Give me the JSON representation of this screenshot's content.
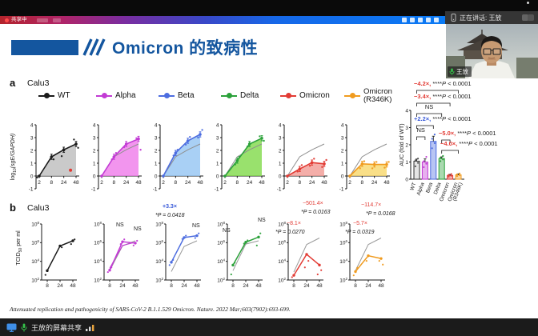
{
  "meeting": {
    "share_bar": {
      "status_label": "共享中",
      "speaking_label": "正在讲话: 王放"
    },
    "webcam": {
      "name": "王放"
    },
    "taskbar": {
      "share_label": "王放的屏幕共享"
    }
  },
  "slide": {
    "title": "Omicron 的致病性",
    "panel_a": {
      "label": "a",
      "cell_line": "Calu3"
    },
    "panel_b": {
      "label": "b",
      "cell_line": "Calu3"
    },
    "legend": [
      {
        "label": "WT",
        "color": "#1a1a1a"
      },
      {
        "label": "Alpha",
        "color": "#c23bd4"
      },
      {
        "label": "Beta",
        "color": "#4d6de0"
      },
      {
        "label": "Delta",
        "color": "#2ba13a"
      },
      {
        "label": "Omicron",
        "color": "#e23b34"
      },
      {
        "label": "Omicron",
        "label2": "(R346K)",
        "color": "#f09b1f"
      }
    ],
    "citation": "Attenuated replication and pathogenicity of SARS-CoV-2 B.1.1.529 Omicron. Nature. 2022 Mar;603(7902):693-699."
  },
  "chart_data": {
    "panel_a": {
      "type": "area",
      "x": [
        2,
        8,
        24,
        48
      ],
      "xticks": [
        "2",
        "8",
        "24",
        "48"
      ],
      "ylabel": "log10(sgE/GAPDH)",
      "ylim": [
        -1,
        4
      ],
      "yticks": [
        4,
        3,
        2,
        1,
        0,
        -1
      ],
      "wt_reference": [
        0,
        1.5,
        2.05,
        2.5
      ],
      "series": [
        {
          "name": "WT",
          "color": "#1a1a1a",
          "fill": "#bdbdbd",
          "values": [
            0,
            1.5,
            2.05,
            2.5
          ],
          "dots": [
            [
              0,
              -0.12
            ],
            [
              1,
              1.3
            ],
            [
              2,
              1.55
            ],
            [
              3,
              2.2
            ],
            [
              3,
              2.85
            ]
          ],
          "outlier": [
            2.55,
            0.45
          ]
        },
        {
          "name": "Alpha",
          "color": "#c23bd4",
          "fill": "#ef7bea",
          "values": [
            0,
            1.5,
            2.5,
            2.9
          ],
          "ref": true,
          "dots": [
            [
              1,
              1.3
            ],
            [
              1,
              1.8
            ],
            [
              2,
              2.25
            ],
            [
              3,
              2.05
            ],
            [
              3,
              2.95
            ]
          ]
        },
        {
          "name": "Beta",
          "color": "#4d6de0",
          "fill": "#93c4f2",
          "values": [
            0,
            1.8,
            2.75,
            3.25
          ],
          "ref": true,
          "dots": [
            [
              1,
              1.6
            ],
            [
              1,
              2.05
            ],
            [
              2,
              2.45
            ],
            [
              2,
              3.05
            ],
            [
              3,
              3.0
            ],
            [
              3,
              3.6
            ]
          ]
        },
        {
          "name": "Delta",
          "color": "#2ba13a",
          "fill": "#7fd948",
          "values": [
            0,
            1.2,
            2.5,
            2.95
          ],
          "ref": true,
          "dots": [
            [
              1,
              0.9
            ],
            [
              1,
              1.5
            ],
            [
              2,
              2.3
            ],
            [
              3,
              2.75
            ],
            [
              3,
              3.1
            ]
          ]
        },
        {
          "name": "Omicron",
          "color": "#e23b34",
          "fill": "#f19a93",
          "values": [
            0,
            0.55,
            1.05,
            0.95
          ],
          "ref": true,
          "dots": [
            [
              1,
              0.35
            ],
            [
              1,
              0.85
            ],
            [
              2,
              0.8
            ],
            [
              2,
              1.35
            ],
            [
              3,
              0.7
            ],
            [
              3,
              1.25
            ]
          ]
        },
        {
          "name": "Omicron (R346K)",
          "color": "#f09b1f",
          "fill": "#f8d76a",
          "values": [
            0,
            0.95,
            0.9,
            0.9
          ],
          "ref": true,
          "dots": [
            [
              1,
              0.6
            ],
            [
              1,
              1.15
            ],
            [
              2,
              0.6
            ],
            [
              2,
              1.1
            ],
            [
              3,
              0.65
            ],
            [
              3,
              1.1
            ]
          ]
        }
      ]
    },
    "panel_a_auc": {
      "type": "bar",
      "ylabel": "AUC (fold of WT)",
      "ylim": [
        0,
        4
      ],
      "yticks": [
        0,
        1,
        2,
        3,
        4
      ],
      "categories": [
        "WT",
        "Alpha",
        "Beta",
        "Delta",
        "Omicron",
        "Omicron (R346K)"
      ],
      "values": [
        1.05,
        1.0,
        2.2,
        1.2,
        0.22,
        0.25
      ],
      "errors": [
        0.12,
        0.18,
        0.3,
        0.1,
        0.06,
        0.06
      ],
      "colors": [
        "#6e6e6e",
        "#c23bd4",
        "#4d6de0",
        "#2ba13a",
        "#e23b34",
        "#f09b1f"
      ],
      "dots": [
        [
          0.75,
          0.95,
          1.1,
          1.2
        ],
        [
          0.7,
          0.9,
          1.05,
          1.3
        ],
        [
          1.8,
          2.1,
          2.35,
          2.6
        ],
        [
          1.05,
          1.15,
          1.25,
          1.35
        ],
        [
          0.15,
          0.2,
          0.25,
          0.3
        ],
        [
          0.18,
          0.23,
          0.28,
          0.33
        ]
      ],
      "comparisons": [
        {
          "span": [
            0,
            5
          ],
          "fold": "−4.2×",
          "fold_color": "#e23b34",
          "p": "****P < 0.0001"
        },
        {
          "span": [
            0,
            4
          ],
          "fold": "−3.4×",
          "fold_color": "#e23b34",
          "p": "****P < 0.0001"
        },
        {
          "span": [
            0,
            3
          ],
          "fold": "NS",
          "fold_color": "#1a1a1a",
          "p": ""
        },
        {
          "span": [
            0,
            2
          ],
          "fold": "+2.2×",
          "fold_color": "#3a5bd9",
          "p": "****P < 0.0001"
        },
        {
          "span": [
            0,
            1
          ],
          "fold": "NS",
          "fold_color": "#1a1a1a",
          "p": ""
        },
        {
          "span": [
            3,
            4
          ],
          "fold": "−5.0×",
          "fold_color": "#e23b34",
          "p": "****P < 0.0001"
        },
        {
          "span": [
            3,
            5
          ],
          "fold": "−4.0×",
          "fold_color": "#e23b34",
          "p": "****P < 0.0001"
        }
      ]
    },
    "panel_b": {
      "type": "line-log",
      "x": [
        8,
        24,
        48
      ],
      "xticks": [
        "8",
        "24",
        "48"
      ],
      "ylabel": "TCID50 per ml",
      "ylim_log10": [
        2,
        8
      ],
      "yticks_log10": [
        2,
        4,
        6,
        8
      ],
      "series": [
        {
          "name": "WT",
          "color": "#1a1a1a",
          "values": [
            3.0,
            5.65,
            6.2
          ],
          "dots": [
            [
              0,
              2.55
            ],
            [
              1,
              5.5
            ],
            [
              2,
              5.85
            ],
            [
              2,
              6.35
            ]
          ],
          "ann": []
        },
        {
          "name": "Alpha",
          "color": "#c23bd4",
          "values": [
            3.05,
            6.1,
            5.95
          ],
          "values2": [
            3.25,
            5.7,
            6.05
          ],
          "ref": [
            3.0,
            5.65,
            6.2
          ],
          "dots": [
            [
              0,
              2.85
            ],
            [
              0,
              3.35
            ],
            [
              1,
              5.85
            ],
            [
              1,
              6.35
            ],
            [
              2,
              5.7
            ],
            [
              2,
              6.2
            ]
          ],
          "ann": [
            {
              "text": "NS",
              "x": 33,
              "y": 33
            },
            {
              "text": "NS",
              "x": 55,
              "y": 38
            }
          ]
        },
        {
          "name": "Beta",
          "color": "#4d6de0",
          "values": [
            3.9,
            6.55,
            6.75
          ],
          "ref": [
            2.9,
            5.6,
            6.2
          ],
          "dots": [
            [
              0,
              3.6
            ],
            [
              0,
              4.15
            ],
            [
              1,
              6.4
            ],
            [
              1,
              6.75
            ],
            [
              2,
              6.5
            ],
            [
              2,
              7.0
            ]
          ],
          "ann": [
            {
              "text": "+3.3×",
              "x": 14,
              "y": 10,
              "color": "#3a5bd9",
              "b": 1
            },
            {
              "text": "*P = 0.0418",
              "x": 5,
              "y": 21,
              "i": 1
            },
            {
              "text": "NS",
              "x": 51,
              "y": 34
            }
          ]
        },
        {
          "name": "Delta",
          "color": "#2ba13a",
          "values": [
            3.6,
            6.05,
            6.6
          ],
          "ref": [
            3.0,
            5.85,
            6.2
          ],
          "dots": [
            [
              0,
              2.6
            ],
            [
              0,
              3.85
            ],
            [
              1,
              5.9
            ],
            [
              1,
              6.25
            ],
            [
              2,
              5.7
            ],
            [
              2,
              7.0
            ]
          ],
          "ann": [
            {
              "text": "NS",
              "x": 12,
              "y": 40
            },
            {
              "text": "NS",
              "x": 56,
              "y": 27
            }
          ]
        },
        {
          "name": "Omicron",
          "color": "#e23b34",
          "values": [
            2.5,
            4.75,
            3.6
          ],
          "ref": [
            2.85,
            5.8,
            6.5
          ],
          "dots": [
            [
              0,
              2.3
            ],
            [
              1,
              4.05
            ],
            [
              1,
              3.35
            ],
            [
              2,
              3.05
            ],
            [
              2,
              2.6
            ]
          ],
          "ann": [
            {
              "text": "−501.4×",
              "x": 36,
              "y": 6,
              "color": "#e23b34"
            },
            {
              "text": "*P = 0.0163",
              "x": 34,
              "y": 17,
              "i": 1
            },
            {
              "text": "−8.1×",
              "x": 16,
              "y": 31,
              "color": "#e23b34"
            },
            {
              "text": "*P = 0.0270",
              "x": 2,
              "y": 42,
              "i": 1
            }
          ]
        },
        {
          "name": "Omicron (R346K)",
          "color": "#f09b1f",
          "values": [
            2.9,
            4.6,
            4.3
          ],
          "ref": [
            3.0,
            5.8,
            6.5
          ],
          "dots": [
            [
              0,
              2.5
            ],
            [
              0,
              3.3
            ],
            [
              1,
              4.05
            ],
            [
              2,
              3.65
            ],
            [
              2,
              4.05
            ]
          ],
          "ann": [
            {
              "text": "−114.7×",
              "x": 32,
              "y": 8,
              "color": "#e23b34"
            },
            {
              "text": "*P = 0.0168",
              "x": 38,
              "y": 19,
              "i": 1
            },
            {
              "text": "−5.7×",
              "x": 22,
              "y": 31,
              "color": "#e23b34"
            },
            {
              "text": "*P = 0.0319",
              "x": 12,
              "y": 42,
              "i": 1
            }
          ]
        }
      ]
    }
  }
}
